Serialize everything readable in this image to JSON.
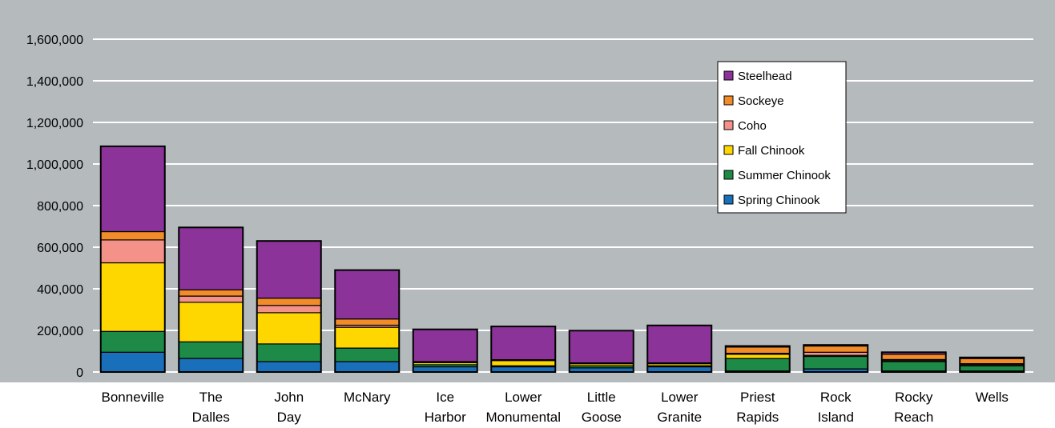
{
  "chart_data": {
    "type": "bar",
    "stacked": true,
    "categories": [
      [
        "Bonneville"
      ],
      [
        "The",
        "Dalles"
      ],
      [
        "John",
        "Day"
      ],
      [
        "McNary"
      ],
      [
        "Ice",
        "Harbor"
      ],
      [
        "Lower",
        "Monumental"
      ],
      [
        "Little",
        "Goose"
      ],
      [
        "Lower",
        "Granite"
      ],
      [
        "Priest",
        "Rapids"
      ],
      [
        "Rock",
        "Island"
      ],
      [
        "Rocky",
        "Reach"
      ],
      [
        "Wells"
      ]
    ],
    "series": [
      {
        "name": "Spring Chinook",
        "color": "#1a6fbb",
        "values": [
          95000,
          65000,
          50000,
          50000,
          25000,
          25000,
          20000,
          25000,
          5000,
          15000,
          5000,
          5000
        ]
      },
      {
        "name": "Summer Chinook",
        "color": "#1d8a47",
        "values": [
          100000,
          80000,
          85000,
          65000,
          10000,
          5000,
          10000,
          5000,
          60000,
          60000,
          45000,
          25000
        ]
      },
      {
        "name": "Fall Chinook",
        "color": "#ffd700",
        "values": [
          330000,
          190000,
          150000,
          100000,
          10000,
          25000,
          10000,
          10000,
          20000,
          5000,
          5000,
          5000
        ]
      },
      {
        "name": "Coho",
        "color": "#f4928a",
        "values": [
          110000,
          30000,
          35000,
          10000,
          2000,
          2000,
          2000,
          2000,
          5000,
          15000,
          5000,
          5000
        ]
      },
      {
        "name": "Sockeye",
        "color": "#f28c28",
        "values": [
          40000,
          30000,
          35000,
          30000,
          3000,
          2000,
          2000,
          2000,
          30000,
          30000,
          25000,
          25000
        ]
      },
      {
        "name": "Steelhead",
        "color": "#8b3399",
        "values": [
          410000,
          300000,
          275000,
          235000,
          155000,
          160000,
          155000,
          180000,
          5000,
          5000,
          10000,
          5000
        ]
      }
    ],
    "yticks": [
      "0",
      "200,000",
      "400,000",
      "600,000",
      "800,000",
      "1,000,000",
      "1,200,000",
      "1,400,000",
      "1,600,000"
    ],
    "ylim": [
      0,
      1600000
    ],
    "grid": true,
    "legend_position": "top-right",
    "legend_order": [
      "Steelhead",
      "Sockeye",
      "Coho",
      "Fall Chinook",
      "Summer Chinook",
      "Spring Chinook"
    ],
    "colors": {
      "plot_background": "#b5babd",
      "gridline": "#ffffff"
    }
  }
}
